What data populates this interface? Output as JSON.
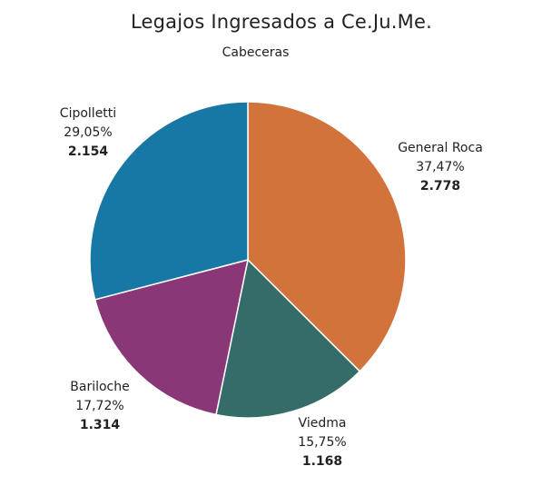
{
  "chart_data": {
    "type": "pie",
    "title": "Legajos Ingresados a Ce.Ju.Me.",
    "subtitle": "Cabeceras",
    "slices": [
      {
        "name": "General Roca",
        "percent": "37,47%",
        "value": 2778,
        "value_label": "2.778",
        "color": "#D2733C"
      },
      {
        "name": "Viedma",
        "percent": "15,75%",
        "value": 1168,
        "value_label": "1.168",
        "color": "#356C6A"
      },
      {
        "name": "Bariloche",
        "percent": "17,72%",
        "value": 1314,
        "value_label": "1.314",
        "color": "#8A3778"
      },
      {
        "name": "Cipolletti",
        "percent": "29,05%",
        "value": 2154,
        "value_label": "2.154",
        "color": "#1778A5"
      }
    ]
  }
}
